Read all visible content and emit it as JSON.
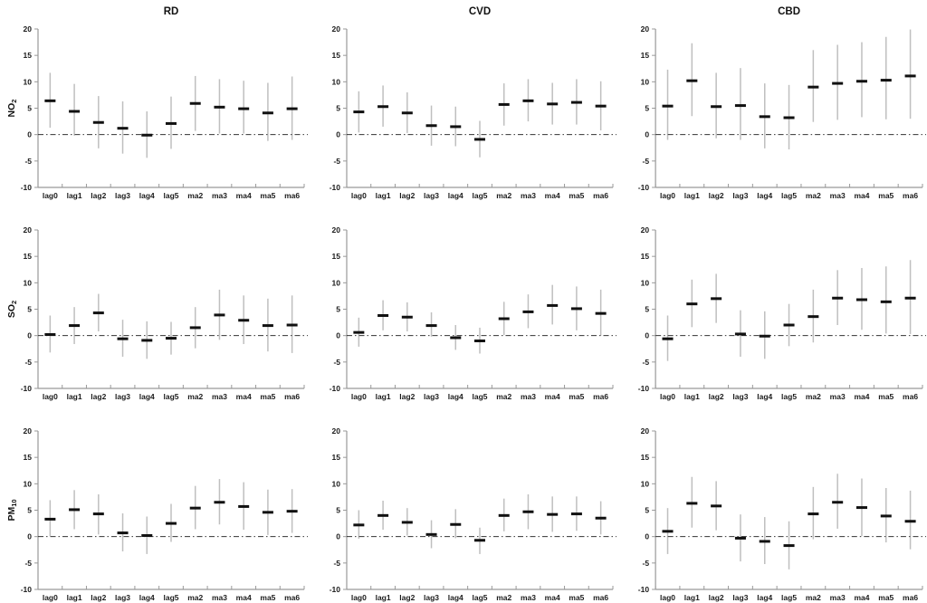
{
  "figure": {
    "col_titles": [
      "RD",
      "CVD",
      "CBD"
    ],
    "row_labels": [
      {
        "main": "NO",
        "sub": "2"
      },
      {
        "main": "SO",
        "sub": "2"
      },
      {
        "main": "PM",
        "sub": "10"
      }
    ],
    "categories": [
      "lag0",
      "lag1",
      "lag2",
      "lag3",
      "lag4",
      "lag5",
      "ma2",
      "ma3",
      "ma4",
      "ma5",
      "ma6"
    ],
    "yticks": [
      -10,
      -5,
      0,
      5,
      10,
      15,
      20
    ],
    "ylim": [
      -10,
      20
    ],
    "reference_line": 0,
    "grid": "off",
    "colors": {
      "marker": "#111111",
      "error_bar": "#bfbfbf",
      "axis": "#999999",
      "tick_label": "#1a1a1a",
      "reference_line": "#333333"
    }
  },
  "chart_data": [
    {
      "type": "scatter",
      "row": "NO2",
      "col": "RD",
      "estimates": [
        6.4,
        4.4,
        2.3,
        1.2,
        -0.1,
        2.1,
        5.9,
        5.2,
        4.9,
        4.1,
        4.9
      ],
      "ci_low": [
        1.3,
        -0.2,
        -2.6,
        -3.6,
        -4.4,
        -2.7,
        0.7,
        0.2,
        0.2,
        -1.2,
        -1.0
      ],
      "ci_high": [
        11.7,
        9.6,
        7.3,
        6.3,
        4.4,
        7.2,
        11.1,
        10.5,
        10.2,
        9.8,
        11.0
      ]
    },
    {
      "type": "scatter",
      "row": "NO2",
      "col": "CVD",
      "estimates": [
        4.3,
        5.3,
        4.1,
        1.7,
        1.5,
        -0.9,
        5.7,
        6.4,
        5.8,
        6.1,
        5.4
      ],
      "ci_low": [
        0.4,
        1.5,
        0.3,
        -2.1,
        -2.2,
        -4.3,
        1.7,
        2.5,
        1.9,
        1.9,
        0.8
      ],
      "ci_high": [
        8.2,
        9.3,
        8.0,
        5.5,
        5.3,
        2.6,
        9.7,
        10.5,
        9.8,
        10.5,
        10.1
      ]
    },
    {
      "type": "scatter",
      "row": "NO2",
      "col": "CBD",
      "estimates": [
        5.4,
        10.2,
        5.3,
        5.5,
        3.4,
        3.2,
        9.0,
        9.7,
        10.1,
        10.3,
        11.1
      ],
      "ci_low": [
        -1.0,
        3.5,
        -0.7,
        -1.0,
        -2.6,
        -2.8,
        2.4,
        2.8,
        3.3,
        2.9,
        3.0
      ],
      "ci_high": [
        12.3,
        17.3,
        11.7,
        12.6,
        9.7,
        9.4,
        16.0,
        17.0,
        17.5,
        18.5,
        19.9
      ]
    },
    {
      "type": "scatter",
      "row": "SO2",
      "col": "RD",
      "estimates": [
        0.2,
        1.9,
        4.3,
        -0.6,
        -0.9,
        -0.5,
        1.5,
        3.9,
        2.9,
        1.9,
        2.0
      ],
      "ci_low": [
        -3.2,
        -1.6,
        0.8,
        -4.0,
        -4.4,
        -3.6,
        -2.4,
        -0.8,
        -1.6,
        -3.0,
        -3.3
      ],
      "ci_high": [
        3.8,
        5.4,
        7.9,
        3.0,
        2.7,
        2.6,
        5.4,
        8.7,
        7.6,
        7.0,
        7.6
      ]
    },
    {
      "type": "scatter",
      "row": "SO2",
      "col": "CVD",
      "estimates": [
        0.6,
        3.8,
        3.5,
        1.9,
        -0.4,
        -1.0,
        3.2,
        4.5,
        5.7,
        5.1,
        4.2
      ],
      "ci_low": [
        -2.1,
        1.0,
        0.8,
        -0.2,
        -2.7,
        -3.4,
        0.1,
        1.4,
        2.1,
        1.0,
        0.0
      ],
      "ci_high": [
        3.4,
        6.7,
        6.3,
        4.4,
        2.0,
        1.5,
        6.4,
        7.8,
        9.6,
        9.3,
        8.7
      ]
    },
    {
      "type": "scatter",
      "row": "SO2",
      "col": "CBD",
      "estimates": [
        -0.6,
        6.0,
        7.0,
        0.3,
        -0.1,
        2.0,
        3.6,
        7.1,
        6.8,
        6.4,
        7.1
      ],
      "ci_low": [
        -4.8,
        1.6,
        2.4,
        -4.0,
        -4.4,
        -2.0,
        -1.3,
        2.0,
        1.1,
        0.4,
        0.3
      ],
      "ci_high": [
        3.8,
        10.6,
        11.7,
        4.8,
        4.6,
        6.0,
        8.7,
        12.4,
        12.8,
        13.1,
        14.3
      ]
    },
    {
      "type": "scatter",
      "row": "PM10",
      "col": "RD",
      "estimates": [
        3.3,
        5.1,
        4.3,
        0.7,
        0.2,
        2.5,
        5.4,
        6.5,
        5.7,
        4.6,
        4.8
      ],
      "ci_low": [
        0.1,
        1.4,
        0.4,
        -2.8,
        -3.3,
        -1.0,
        1.4,
        2.3,
        1.3,
        0.3,
        0.7
      ],
      "ci_high": [
        6.9,
        8.8,
        8.0,
        4.4,
        3.8,
        6.2,
        9.6,
        10.9,
        10.3,
        8.9,
        9.0
      ]
    },
    {
      "type": "scatter",
      "row": "PM10",
      "col": "CVD",
      "estimates": [
        2.2,
        4.0,
        2.7,
        0.4,
        2.3,
        -0.7,
        4.0,
        4.7,
        4.2,
        4.3,
        3.5
      ],
      "ci_low": [
        -0.4,
        1.3,
        0.2,
        -2.2,
        -0.3,
        -3.3,
        1.0,
        1.4,
        0.9,
        1.1,
        0.4
      ],
      "ci_high": [
        5.0,
        6.8,
        5.4,
        3.1,
        5.2,
        1.7,
        7.2,
        8.0,
        7.6,
        7.6,
        6.7
      ]
    },
    {
      "type": "scatter",
      "row": "PM10",
      "col": "CBD",
      "estimates": [
        1.0,
        6.3,
        5.8,
        -0.3,
        -0.9,
        -1.7,
        4.3,
        6.5,
        5.5,
        3.9,
        2.9
      ],
      "ci_low": [
        -3.3,
        1.7,
        1.2,
        -4.7,
        -5.2,
        -6.2,
        -0.5,
        1.5,
        0.1,
        -1.1,
        -2.4
      ],
      "ci_high": [
        5.4,
        11.3,
        10.5,
        4.2,
        3.7,
        2.9,
        9.4,
        11.9,
        11.0,
        9.2,
        8.7
      ]
    }
  ]
}
